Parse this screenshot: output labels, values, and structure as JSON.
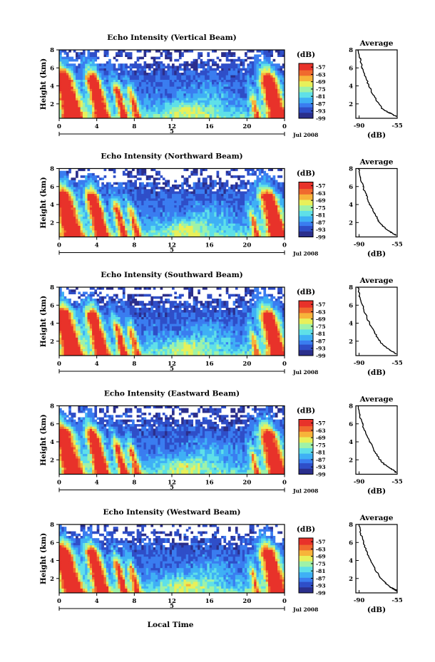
{
  "figure": {
    "xlabel": "Local Time",
    "date_label": "Jul 2008",
    "day_label": "5",
    "avg_title": "Average",
    "avg_xlabel": "(dB)",
    "colorbar_label": "(dB)"
  },
  "chart_data": [
    {
      "type": "heatmap",
      "title": "Echo Intensity (Vertical Beam)",
      "ylabel": "Height (km)",
      "x_ticks": [
        "0",
        "4",
        "8",
        "12",
        "16",
        "20",
        "0"
      ],
      "y_ticks": [
        "2",
        "4",
        "6",
        "8"
      ],
      "xlim": [
        0,
        24
      ],
      "ylim": [
        0.4,
        8
      ],
      "colorbar_ticks": [
        "-57",
        "-63",
        "-69",
        "-75",
        "-81",
        "-87",
        "-93",
        "-99"
      ],
      "colorbar_range": [
        -99,
        -54
      ],
      "average": {
        "x_ticks": [
          "-90",
          "-55"
        ],
        "y_ticks": [
          "2",
          "4",
          "6",
          "8"
        ],
        "xlim": [
          -93,
          -55
        ],
        "ylim": [
          0.4,
          8
        ],
        "points": [
          [
            -90.5,
            8.0
          ],
          [
            -89,
            7.0
          ],
          [
            -87,
            6.0
          ],
          [
            -84,
            5.0
          ],
          [
            -81,
            4.0
          ],
          [
            -77,
            3.0
          ],
          [
            -73,
            2.2
          ],
          [
            -69,
            1.5
          ],
          [
            -64,
            1.1
          ],
          [
            -60,
            0.9
          ],
          [
            -56,
            0.6
          ]
        ]
      }
    },
    {
      "type": "heatmap",
      "title": "Echo Intensity (Northward Beam)",
      "ylabel": "Height (km)",
      "x_ticks": [
        "0",
        "4",
        "8",
        "12",
        "16",
        "20",
        "0"
      ],
      "y_ticks": [
        "2",
        "4",
        "6",
        "8"
      ],
      "xlim": [
        0,
        24
      ],
      "ylim": [
        0.4,
        8
      ],
      "colorbar_ticks": [
        "-57",
        "-63",
        "-69",
        "-75",
        "-81",
        "-87",
        "-93",
        "-99"
      ],
      "colorbar_range": [
        -99,
        -54
      ],
      "average": {
        "x_ticks": [
          "-90",
          "-55"
        ],
        "y_ticks": [
          "2",
          "4",
          "6",
          "8"
        ],
        "xlim": [
          -93,
          -55
        ],
        "ylim": [
          0.4,
          8
        ],
        "points": [
          [
            -90.5,
            8.0
          ],
          [
            -89,
            7.0
          ],
          [
            -86.5,
            6.0
          ],
          [
            -83.5,
            5.0
          ],
          [
            -80,
            4.0
          ],
          [
            -76,
            3.0
          ],
          [
            -72,
            2.2
          ],
          [
            -68,
            1.6
          ],
          [
            -63,
            1.1
          ],
          [
            -59,
            0.8
          ],
          [
            -56,
            0.6
          ]
        ]
      }
    },
    {
      "type": "heatmap",
      "title": "Echo Intensity (Southward Beam)",
      "ylabel": "Height (km)",
      "x_ticks": [
        "0",
        "4",
        "8",
        "12",
        "16",
        "20",
        "0"
      ],
      "y_ticks": [
        "2",
        "4",
        "6",
        "8"
      ],
      "xlim": [
        0,
        24
      ],
      "ylim": [
        0.4,
        8
      ],
      "colorbar_ticks": [
        "-57",
        "-63",
        "-69",
        "-75",
        "-81",
        "-87",
        "-93",
        "-99"
      ],
      "colorbar_range": [
        -99,
        -54
      ],
      "average": {
        "x_ticks": [
          "-90",
          "-55"
        ],
        "y_ticks": [
          "2",
          "4",
          "6",
          "8"
        ],
        "xlim": [
          -93,
          -55
        ],
        "ylim": [
          0.4,
          8
        ],
        "points": [
          [
            -91,
            8.0
          ],
          [
            -89.5,
            7.0
          ],
          [
            -87,
            6.0
          ],
          [
            -84,
            5.0
          ],
          [
            -80.5,
            4.0
          ],
          [
            -76,
            3.0
          ],
          [
            -72,
            2.1
          ],
          [
            -67,
            1.5
          ],
          [
            -62,
            1.0
          ],
          [
            -58,
            0.8
          ],
          [
            -56,
            0.6
          ]
        ]
      }
    },
    {
      "type": "heatmap",
      "title": "Echo Intensity (Eastward Beam)",
      "ylabel": "Height (km)",
      "x_ticks": [
        "0",
        "4",
        "8",
        "12",
        "16",
        "20",
        "0"
      ],
      "y_ticks": [
        "2",
        "4",
        "6",
        "8"
      ],
      "xlim": [
        0,
        24
      ],
      "ylim": [
        0.4,
        8
      ],
      "colorbar_ticks": [
        "-57",
        "-63",
        "-69",
        "-75",
        "-81",
        "-87",
        "-93",
        "-99"
      ],
      "colorbar_range": [
        -99,
        -54
      ],
      "average": {
        "x_ticks": [
          "-90",
          "-55"
        ],
        "y_ticks": [
          "2",
          "4",
          "6",
          "8"
        ],
        "xlim": [
          -93,
          -55
        ],
        "ylim": [
          0.4,
          8
        ],
        "points": [
          [
            -90.5,
            8.0
          ],
          [
            -89.5,
            7.0
          ],
          [
            -87,
            6.0
          ],
          [
            -84,
            5.0
          ],
          [
            -80,
            4.0
          ],
          [
            -76,
            3.0
          ],
          [
            -72,
            2.2
          ],
          [
            -67,
            1.5
          ],
          [
            -62,
            1.1
          ],
          [
            -58,
            0.8
          ],
          [
            -56,
            0.6
          ]
        ]
      }
    },
    {
      "type": "heatmap",
      "title": "Echo Intensity (Westward Beam)",
      "ylabel": "Height (km)",
      "x_ticks": [
        "0",
        "4",
        "8",
        "12",
        "16",
        "20",
        "0"
      ],
      "y_ticks": [
        "2",
        "4",
        "6",
        "8"
      ],
      "xlim": [
        0,
        24
      ],
      "ylim": [
        0.4,
        8
      ],
      "colorbar_ticks": [
        "-57",
        "-63",
        "-69",
        "-75",
        "-81",
        "-87",
        "-93",
        "-99"
      ],
      "colorbar_range": [
        -99,
        -54
      ],
      "average": {
        "x_ticks": [
          "-90",
          "-55"
        ],
        "y_ticks": [
          "2",
          "4",
          "6",
          "8"
        ],
        "xlim": [
          -93,
          -55
        ],
        "ylim": [
          0.4,
          8
        ],
        "points": [
          [
            -90,
            8.0
          ],
          [
            -88.5,
            7.0
          ],
          [
            -86,
            6.0
          ],
          [
            -83,
            5.0
          ],
          [
            -79.5,
            4.0
          ],
          [
            -75.5,
            3.0
          ],
          [
            -71,
            2.2
          ],
          [
            -66,
            1.5
          ],
          [
            -61,
            1.0
          ],
          [
            -57.5,
            0.8
          ],
          [
            -55.5,
            0.6
          ]
        ]
      }
    }
  ],
  "colors": {
    "colormap": [
      "#2b2f8c",
      "#2f4ec8",
      "#3a7df0",
      "#3fb0f5",
      "#5fe0e8",
      "#9ff2a8",
      "#e8f05a",
      "#f7b43a",
      "#f06a2e",
      "#e8322a"
    ]
  }
}
